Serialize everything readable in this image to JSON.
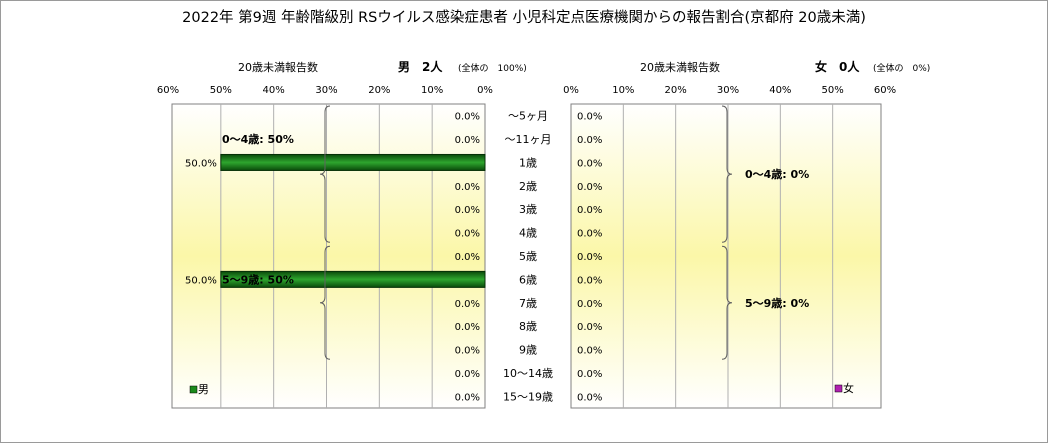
{
  "chart_data": {
    "type": "bar",
    "title": "2022年 第9週 年齢階級別 RSウイルス感染症患者 小児科定点医療機関からの報告割合(京都府 20歳未満)",
    "categories": [
      "～5ヶ月",
      "～11ヶ月",
      "1歳",
      "2歳",
      "3歳",
      "4歳",
      "5歳",
      "6歳",
      "7歳",
      "8歳",
      "9歳",
      "10～14歳",
      "15～19歳"
    ],
    "xlim": [
      0,
      60
    ],
    "ticks": [
      "60%",
      "50%",
      "40%",
      "30%",
      "20%",
      "10%",
      "0%"
    ],
    "ticks_right": [
      "0%",
      "10%",
      "20%",
      "30%",
      "40%",
      "50%",
      "60%"
    ],
    "series": [
      {
        "name": "男",
        "panel": "left",
        "axis_label": "20歳未満報告数",
        "header": "男　2人",
        "header_sub": "(全体の　100%)",
        "color": "#1a8a1a",
        "values": [
          0,
          0,
          50,
          0,
          0,
          0,
          0,
          50,
          0,
          0,
          0,
          0,
          0
        ],
        "value_labels": [
          "0.0%",
          "0.0%",
          "50.0%",
          "0.0%",
          "0.0%",
          "0.0%",
          "0.0%",
          "50.0%",
          "0.0%",
          "0.0%",
          "0.0%",
          "0.0%",
          "0.0%"
        ],
        "legend": "男",
        "groups": [
          {
            "label": "0～4歳: 50%",
            "from": 0,
            "to": 5
          },
          {
            "label": "5～9歳: 50%",
            "from": 6,
            "to": 10
          }
        ]
      },
      {
        "name": "女",
        "panel": "right",
        "axis_label": "20歳未満報告数",
        "header": "女　0人",
        "header_sub": "(全体の　0%)",
        "color": "#b020b0",
        "values": [
          0,
          0,
          0,
          0,
          0,
          0,
          0,
          0,
          0,
          0,
          0,
          0,
          0
        ],
        "value_labels": [
          "0.0%",
          "0.0%",
          "0.0%",
          "0.0%",
          "0.0%",
          "0.0%",
          "0.0%",
          "0.0%",
          "0.0%",
          "0.0%",
          "0.0%",
          "0.0%",
          "0.0%"
        ],
        "legend": "女",
        "groups": [
          {
            "label": "0～4歳: 0%",
            "from": 0,
            "to": 5
          },
          {
            "label": "5～9歳: 0%",
            "from": 6,
            "to": 10
          }
        ]
      }
    ],
    "grid": true,
    "legend_position": "bottom-left"
  }
}
